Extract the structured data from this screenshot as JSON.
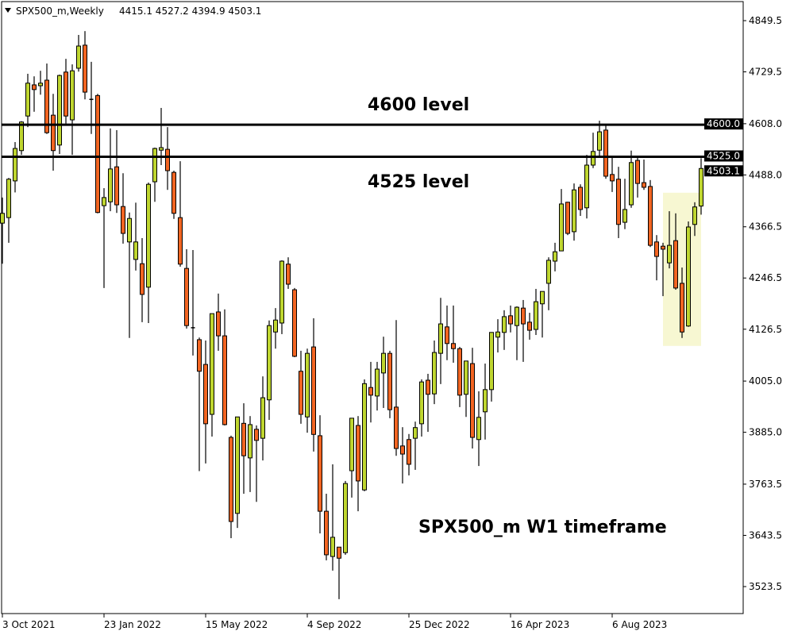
{
  "header": {
    "symbol_timeframe": "SPX500_m,Weekly",
    "ohlc_text": "4415.1 4527.2 4394.9 4503.1",
    "menu_icon": "triangle-down-icon"
  },
  "colors": {
    "bull": "#bfd630",
    "bear": "#f26522",
    "outline": "#000000",
    "highlight": "#f7f7d2",
    "background": "#ffffff"
  },
  "chart_data": {
    "type": "candlestick",
    "title": "",
    "timeframe": "Weekly",
    "ylim": [
      3480,
      4875
    ],
    "y_ticks": [
      "4849.5",
      "4729.5",
      "4608.0",
      "4488.0",
      "4366.5",
      "4246.5",
      "4126.5",
      "4005.0",
      "3885.0",
      "3763.5",
      "3643.5",
      "3523.5"
    ],
    "x_ticks": [
      {
        "label": "3 Oct 2021",
        "index": 0
      },
      {
        "label": "23 Jan 2022",
        "index": 16
      },
      {
        "label": "15 May 2022",
        "index": 32
      },
      {
        "label": "4 Sep 2022",
        "index": 48
      },
      {
        "label": "25 Dec 2022",
        "index": 64
      },
      {
        "label": "16 Apr 2023",
        "index": 80
      },
      {
        "label": "6 Aug 2023",
        "index": 96
      }
    ],
    "grid": false,
    "candles": [
      [
        4375,
        4435,
        4280,
        4398
      ],
      [
        4388,
        4481,
        4329,
        4478
      ],
      [
        4474,
        4565,
        4447,
        4550
      ],
      [
        4545,
        4614,
        4535,
        4612
      ],
      [
        4626,
        4725,
        4600,
        4703
      ],
      [
        4699,
        4719,
        4636,
        4688
      ],
      [
        4697,
        4732,
        4676,
        4703
      ],
      [
        4710,
        4749,
        4584,
        4587
      ],
      [
        4628,
        4678,
        4498,
        4545
      ],
      [
        4558,
        4723,
        4537,
        4721
      ],
      [
        4729,
        4760,
        4608,
        4626
      ],
      [
        4617,
        4747,
        4535,
        4732
      ],
      [
        4738,
        4816,
        4730,
        4790
      ],
      [
        4792,
        4825,
        4665,
        4682
      ],
      [
        4665,
        4753,
        4584,
        4664
      ],
      [
        4674,
        4678,
        4398,
        4400
      ],
      [
        4416,
        4457,
        4223,
        4435
      ],
      [
        4425,
        4597,
        4403,
        4502
      ],
      [
        4507,
        4593,
        4399,
        4418
      ],
      [
        4414,
        4492,
        4327,
        4351
      ],
      [
        4331,
        4400,
        4106,
        4386
      ],
      [
        4290,
        4423,
        4264,
        4331
      ],
      [
        4280,
        4340,
        4143,
        4208
      ],
      [
        4225,
        4470,
        4141,
        4466
      ],
      [
        4472,
        4552,
        4425,
        4550
      ],
      [
        4546,
        4645,
        4511,
        4552
      ],
      [
        4548,
        4600,
        4453,
        4498
      ],
      [
        4494,
        4498,
        4385,
        4398
      ],
      [
        4388,
        4520,
        4273,
        4279
      ],
      [
        4269,
        4314,
        4128,
        4135
      ],
      [
        4130,
        4312,
        4065,
        4129
      ],
      [
        4102,
        4107,
        3794,
        4028
      ],
      [
        4044,
        4100,
        3812,
        3905
      ],
      [
        3927,
        4163,
        3875,
        4163
      ],
      [
        4167,
        4210,
        4076,
        4111
      ],
      [
        4111,
        4173,
        3901,
        3903
      ],
      [
        3873,
        3877,
        3637,
        3676
      ],
      [
        3695,
        3921,
        3661,
        3921
      ],
      [
        3906,
        3953,
        3741,
        3830
      ],
      [
        3825,
        3923,
        3745,
        3903
      ],
      [
        3892,
        3901,
        3722,
        3866
      ],
      [
        3871,
        4016,
        3819,
        3966
      ],
      [
        3961,
        4147,
        3914,
        4135
      ],
      [
        4120,
        4176,
        4081,
        4148
      ],
      [
        4141,
        4288,
        4115,
        4286
      ],
      [
        4279,
        4295,
        4221,
        4232
      ],
      [
        4219,
        4223,
        4061,
        4063
      ],
      [
        4028,
        4076,
        3905,
        3927
      ],
      [
        3921,
        4081,
        3884,
        4070
      ],
      [
        4085,
        4152,
        3840,
        3880
      ],
      [
        3877,
        3925,
        3648,
        3700
      ],
      [
        3700,
        3741,
        3585,
        3598
      ],
      [
        3594,
        3810,
        3561,
        3639
      ],
      [
        3616,
        3616,
        3494,
        3590
      ],
      [
        3603,
        3771,
        3598,
        3765
      ],
      [
        3795,
        3918,
        3732,
        3918
      ],
      [
        3901,
        3923,
        3700,
        3771
      ],
      [
        3750,
        4009,
        3747,
        3999
      ],
      [
        3990,
        4050,
        3908,
        3972
      ],
      [
        3970,
        4050,
        3936,
        4033
      ],
      [
        4024,
        4109,
        3942,
        4070
      ],
      [
        4070,
        4076,
        3918,
        3938
      ],
      [
        3944,
        4148,
        3830,
        3847
      ],
      [
        3853,
        3897,
        3765,
        3834
      ],
      [
        3868,
        3881,
        3784,
        3810
      ],
      [
        3871,
        3910,
        3797,
        3896
      ],
      [
        3905,
        4009,
        3875,
        4003
      ],
      [
        4007,
        4022,
        3886,
        3974
      ],
      [
        3975,
        4100,
        3951,
        4072
      ],
      [
        4070,
        4200,
        3998,
        4139
      ],
      [
        4132,
        4182,
        4054,
        4093
      ],
      [
        4093,
        4182,
        4048,
        4081
      ],
      [
        4081,
        4085,
        3944,
        3972
      ],
      [
        3974,
        4052,
        3921,
        4052
      ],
      [
        4046,
        4083,
        3847,
        3873
      ],
      [
        3868,
        3981,
        3806,
        3920
      ],
      [
        3933,
        4046,
        3868,
        3985
      ],
      [
        3985,
        4119,
        3957,
        4119
      ],
      [
        4108,
        4150,
        4072,
        4120
      ],
      [
        4119,
        4171,
        4078,
        4156
      ],
      [
        4158,
        4182,
        4119,
        4139
      ],
      [
        4135,
        4180,
        4054,
        4178
      ],
      [
        4176,
        4195,
        4050,
        4139
      ],
      [
        4143,
        4165,
        4102,
        4124
      ],
      [
        4126,
        4221,
        4113,
        4191
      ],
      [
        4186,
        4215,
        4107,
        4215
      ],
      [
        4234,
        4295,
        4171,
        4288
      ],
      [
        4286,
        4329,
        4262,
        4308
      ],
      [
        4310,
        4455,
        4310,
        4420
      ],
      [
        4424,
        4425,
        4347,
        4351
      ],
      [
        4355,
        4468,
        4334,
        4453
      ],
      [
        4459,
        4466,
        4392,
        4407
      ],
      [
        4411,
        4535,
        4386,
        4511
      ],
      [
        4511,
        4587,
        4504,
        4543
      ],
      [
        4546,
        4615,
        4533,
        4589
      ],
      [
        4593,
        4604,
        4479,
        4485
      ],
      [
        4489,
        4528,
        4448,
        4474
      ],
      [
        4478,
        4507,
        4340,
        4372
      ],
      [
        4377,
        4479,
        4361,
        4407
      ],
      [
        4418,
        4545,
        4411,
        4517
      ],
      [
        4522,
        4528,
        4435,
        4468
      ],
      [
        4470,
        4524,
        4453,
        4459
      ],
      [
        4461,
        4476,
        4319,
        4323
      ],
      [
        4331,
        4347,
        4241,
        4297
      ],
      [
        4321,
        4329,
        4204,
        4314
      ],
      [
        4282,
        4403,
        4269,
        4323
      ],
      [
        4334,
        4398,
        4219,
        4223
      ],
      [
        4234,
        4271,
        4106,
        4120
      ],
      [
        4134,
        4379,
        4132,
        4366
      ],
      [
        4372,
        4424,
        4345,
        4413
      ],
      [
        4415.1,
        4527.2,
        4394.9,
        4503.1
      ]
    ],
    "candle_format": [
      "open",
      "high",
      "low",
      "close"
    ],
    "horizontal_lines": [
      {
        "price": 4600.0,
        "label": "4600.0",
        "annotation": "4600 level"
      },
      {
        "price": 4525.0,
        "label": "4525.0",
        "annotation": "4525 level"
      }
    ],
    "current_price_label": "4503.1",
    "highlight_range": {
      "from_index": 105,
      "to_index": 109
    },
    "annotation": "SPX500_m W1 timeframe"
  }
}
